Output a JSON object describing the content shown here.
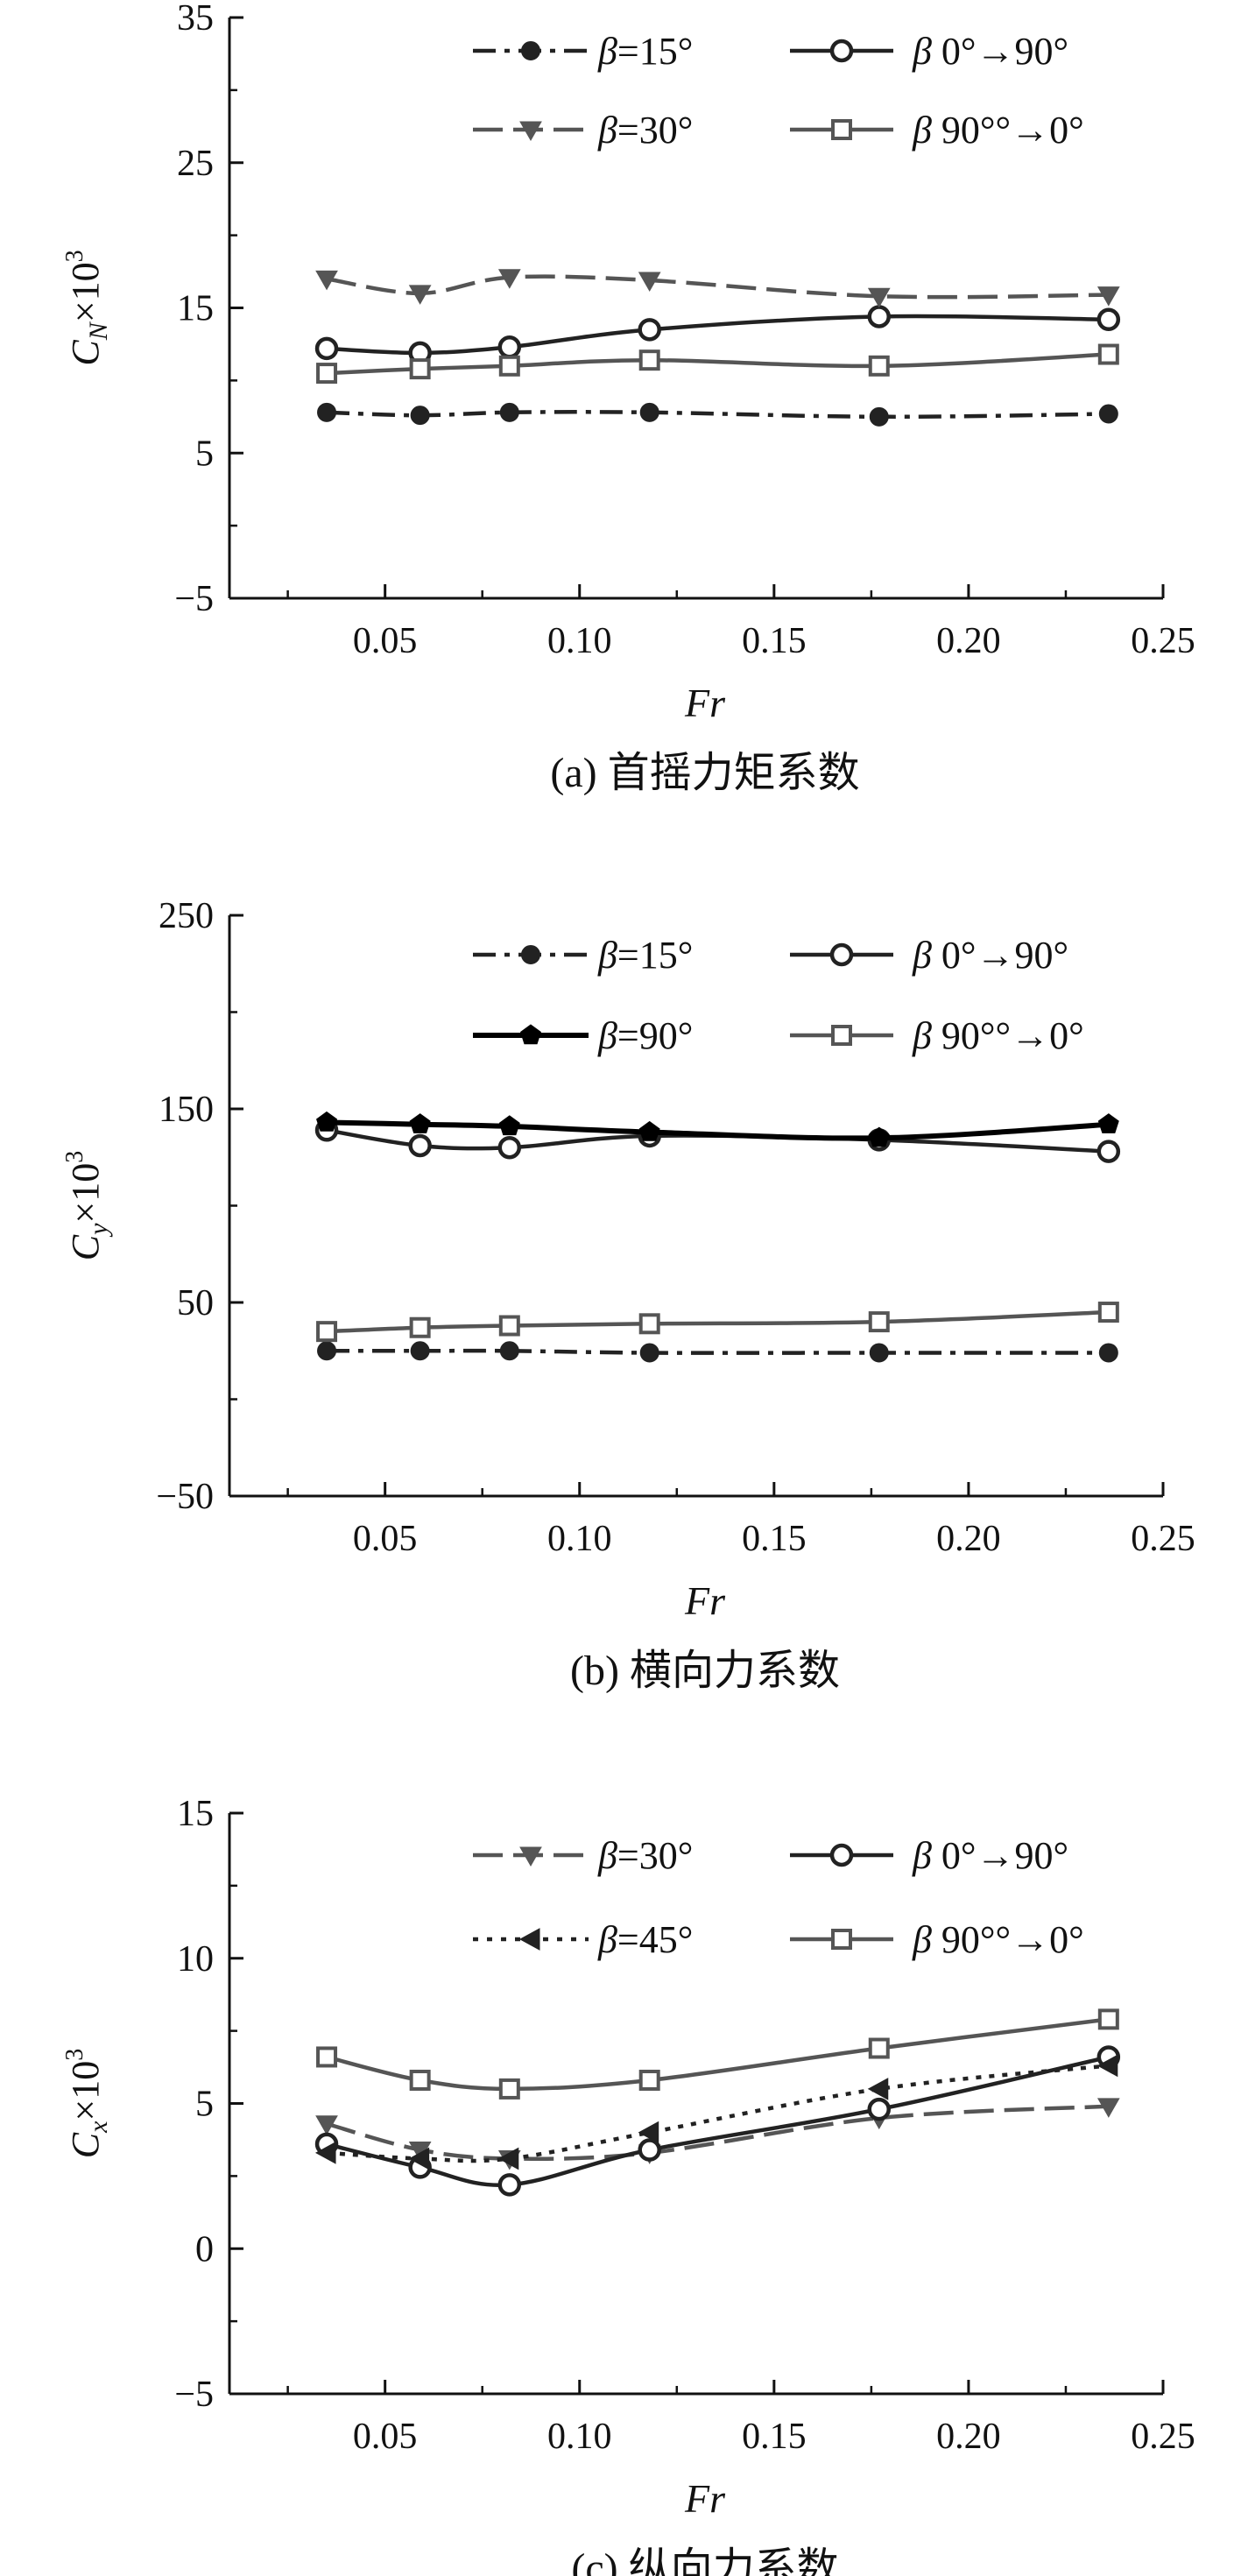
{
  "figure": {
    "axis_color": "#111111"
  },
  "chart_data": [
    {
      "type": "line",
      "caption": "(a) 首摇力矩系数",
      "xlabel": "Fr",
      "ylabel": {
        "main": "C",
        "sub": "N",
        "suffix": "×10",
        "sup": "3"
      },
      "xlim": [
        0.01,
        0.25
      ],
      "ylim": [
        -5,
        35
      ],
      "xticks": [
        0.05,
        0.1,
        0.15,
        0.2,
        0.25
      ],
      "xtick_labels": [
        "0.05",
        "0.10",
        "0.15",
        "0.20",
        "0.25"
      ],
      "yticks": [
        -5,
        5,
        15,
        25,
        35
      ],
      "ytick_labels": [
        "−5",
        "5",
        "15",
        "25",
        "35"
      ],
      "x": [
        0.035,
        0.059,
        0.082,
        0.118,
        0.177,
        0.236
      ],
      "series": [
        {
          "name": "β=15°",
          "name_greek": "β",
          "name_rest": "=15°",
          "values": [
            7.8,
            7.6,
            7.8,
            7.8,
            7.5,
            7.7
          ],
          "color": "#222222",
          "dash": "dashdot",
          "marker": "circle-filled"
        },
        {
          "name": "β 0°→90°",
          "name_greek": "β",
          "name_rest": " 0°→90°",
          "values": [
            12.2,
            11.9,
            12.3,
            13.5,
            14.4,
            14.2
          ],
          "color": "#222222",
          "dash": "solid",
          "marker": "circle-open"
        },
        {
          "name": "β=30°",
          "name_greek": "β",
          "name_rest": "=30°",
          "values": [
            17.0,
            16.0,
            17.1,
            16.9,
            15.8,
            15.9
          ],
          "color": "#555555",
          "dash": "longdash",
          "marker": "triangle-down"
        },
        {
          "name": "β 90°°→0°",
          "name_greek": "β",
          "name_rest": " 90°°→0°",
          "values": [
            10.5,
            10.8,
            11.0,
            11.4,
            11.0,
            11.8
          ],
          "color": "#555555",
          "dash": "solid",
          "marker": "square-open"
        }
      ]
    },
    {
      "type": "line",
      "caption": "(b) 横向力系数",
      "xlabel": "Fr",
      "ylabel": {
        "main": "C",
        "sub": "y",
        "suffix": "×10",
        "sup": "3"
      },
      "xlim": [
        0.01,
        0.25
      ],
      "ylim": [
        -50,
        250
      ],
      "xticks": [
        0.05,
        0.1,
        0.15,
        0.2,
        0.25
      ],
      "xtick_labels": [
        "0.05",
        "0.10",
        "0.15",
        "0.20",
        "0.25"
      ],
      "yticks": [
        -50,
        50,
        150,
        250
      ],
      "ytick_labels": [
        "−50",
        "50",
        "150",
        "250"
      ],
      "x": [
        0.035,
        0.059,
        0.082,
        0.118,
        0.177,
        0.236
      ],
      "series": [
        {
          "name": "β=15°",
          "name_greek": "β",
          "name_rest": "=15°",
          "values": [
            25,
            25,
            25,
            24,
            24,
            24
          ],
          "color": "#222222",
          "dash": "dashdot",
          "marker": "circle-filled"
        },
        {
          "name": "β 0°→90°",
          "name_greek": "β",
          "name_rest": " 0°→90°",
          "values": [
            139,
            131,
            130,
            136,
            134,
            128
          ],
          "color": "#222222",
          "dash": "solid",
          "marker": "circle-open"
        },
        {
          "name": "β=90°",
          "name_greek": "β",
          "name_rest": "=90°",
          "values": [
            143,
            142,
            141,
            138,
            135,
            142
          ],
          "color": "#000000",
          "dash": "solid-bold",
          "marker": "pentagon-filled"
        },
        {
          "name": "β 90°°→0°",
          "name_greek": "β",
          "name_rest": " 90°°→0°",
          "values": [
            35,
            37,
            38,
            39,
            40,
            45
          ],
          "color": "#555555",
          "dash": "solid",
          "marker": "square-open"
        }
      ]
    },
    {
      "type": "line",
      "caption": "(c) 纵向力系数",
      "xlabel": "Fr",
      "ylabel": {
        "main": "C",
        "sub": "x",
        "suffix": "×10",
        "sup": "3"
      },
      "xlim": [
        0.01,
        0.25
      ],
      "ylim": [
        -5,
        15
      ],
      "xticks": [
        0.05,
        0.1,
        0.15,
        0.2,
        0.25
      ],
      "xtick_labels": [
        "0.05",
        "0.10",
        "0.15",
        "0.20",
        "0.25"
      ],
      "yticks": [
        -5,
        0,
        5,
        10,
        15
      ],
      "ytick_labels": [
        "−5",
        "0",
        "5",
        "10",
        "15"
      ],
      "x": [
        0.035,
        0.059,
        0.082,
        0.118,
        0.177,
        0.236
      ],
      "series": [
        {
          "name": "β=30°",
          "name_greek": "β",
          "name_rest": "=30°",
          "values": [
            4.3,
            3.4,
            3.1,
            3.3,
            4.5,
            4.9
          ],
          "color": "#555555",
          "dash": "longdash",
          "marker": "triangle-down"
        },
        {
          "name": "β 0°→90°",
          "name_greek": "β",
          "name_rest": " 0°→90°",
          "values": [
            3.6,
            2.8,
            2.2,
            3.4,
            4.8,
            6.6
          ],
          "color": "#222222",
          "dash": "solid",
          "marker": "circle-open"
        },
        {
          "name": "β=45°",
          "name_greek": "β",
          "name_rest": "=45°",
          "values": [
            3.3,
            3.1,
            3.1,
            4.0,
            5.5,
            6.3
          ],
          "color": "#222222",
          "dash": "dotted",
          "marker": "triangle-left"
        },
        {
          "name": "β 90°°→0°",
          "name_greek": "β",
          "name_rest": " 90°°→0°",
          "values": [
            6.6,
            5.8,
            5.5,
            5.8,
            6.9,
            7.9
          ],
          "color": "#555555",
          "dash": "solid",
          "marker": "square-open"
        }
      ]
    }
  ]
}
